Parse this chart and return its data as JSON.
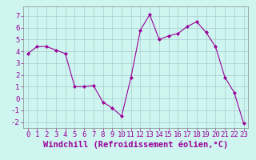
{
  "x": [
    0,
    1,
    2,
    3,
    4,
    5,
    6,
    7,
    8,
    9,
    10,
    11,
    12,
    13,
    14,
    15,
    16,
    17,
    18,
    19,
    20,
    21,
    22,
    23
  ],
  "y": [
    3.8,
    4.4,
    4.4,
    4.1,
    3.8,
    1.0,
    1.0,
    1.1,
    -0.3,
    -0.8,
    -1.5,
    1.8,
    5.8,
    7.1,
    5.0,
    5.3,
    5.5,
    6.1,
    6.5,
    5.6,
    4.4,
    1.8,
    0.5,
    -2.1
  ],
  "line_color": "#990099",
  "marker": "D",
  "marker_size": 2.0,
  "background_color": "#cef5f0",
  "grid_color": "#aacccc",
  "xlabel": "Windchill (Refroidissement éolien,°C)",
  "xlabel_color": "#990099",
  "xlabel_fontsize": 7.5,
  "ylim": [
    -2.5,
    7.8
  ],
  "xlim": [
    -0.5,
    23.5
  ],
  "yticks": [
    -2,
    -1,
    0,
    1,
    2,
    3,
    4,
    5,
    6,
    7
  ],
  "xticks": [
    0,
    1,
    2,
    3,
    4,
    5,
    6,
    7,
    8,
    9,
    10,
    11,
    12,
    13,
    14,
    15,
    16,
    17,
    18,
    19,
    20,
    21,
    22,
    23
  ],
  "tick_fontsize": 6.5,
  "tick_color": "#990099"
}
